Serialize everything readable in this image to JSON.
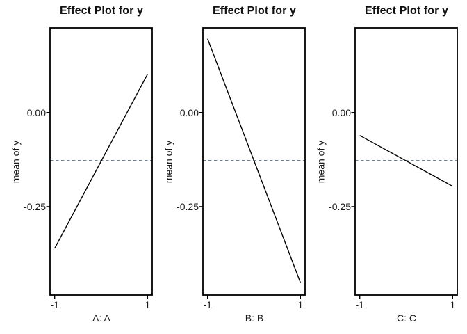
{
  "figure": {
    "background": "#ffffff",
    "panel_count": 3
  },
  "styles": {
    "line_color": "#000000",
    "mean_line_color": "#3f546b",
    "axis_color": "#000000",
    "text_color": "#1a1a1a"
  },
  "chart_data": [
    {
      "type": "line",
      "title": "Effect Plot for y",
      "xlabel": "A: A",
      "ylabel": "mean of  y",
      "x": [
        -1,
        1
      ],
      "values": [
        -0.361,
        0.102
      ],
      "mean_reference_line": -0.128,
      "xlim": [
        -1.1,
        1.1
      ],
      "ylim": [
        -0.485,
        0.225
      ],
      "x_ticks": [
        {
          "label": "-1",
          "value": -1
        },
        {
          "label": "1",
          "value": 1
        }
      ],
      "y_ticks": [
        {
          "label": "0.00",
          "value": 0
        },
        {
          "label": "-0.25",
          "value": -0.25
        }
      ],
      "grid": false,
      "legend": false,
      "line_style": "solid",
      "mean_line_style": "dashed"
    },
    {
      "type": "line",
      "title": "Effect Plot for y",
      "xlabel": "B: B",
      "ylabel": "mean of  y",
      "x": [
        -1,
        1
      ],
      "values": [
        0.196,
        -0.452
      ],
      "mean_reference_line": -0.128,
      "xlim": [
        -1.1,
        1.1
      ],
      "ylim": [
        -0.485,
        0.225
      ],
      "x_ticks": [
        {
          "label": "-1",
          "value": -1
        },
        {
          "label": "1",
          "value": 1
        }
      ],
      "y_ticks": [
        {
          "label": "0.00",
          "value": 0
        },
        {
          "label": "-0.25",
          "value": -0.25
        }
      ],
      "grid": false,
      "legend": false,
      "line_style": "solid",
      "mean_line_style": "dashed"
    },
    {
      "type": "line",
      "title": "Effect Plot for y",
      "xlabel": "C: C",
      "ylabel": "mean of  y",
      "x": [
        -1,
        1
      ],
      "values": [
        -0.061,
        -0.196
      ],
      "mean_reference_line": -0.128,
      "xlim": [
        -1.1,
        1.1
      ],
      "ylim": [
        -0.485,
        0.225
      ],
      "x_ticks": [
        {
          "label": "-1",
          "value": -1
        },
        {
          "label": "1",
          "value": 1
        }
      ],
      "y_ticks": [
        {
          "label": "0.00",
          "value": 0
        },
        {
          "label": "-0.25",
          "value": -0.25
        }
      ],
      "grid": false,
      "legend": false,
      "line_style": "solid",
      "mean_line_style": "dashed"
    }
  ]
}
